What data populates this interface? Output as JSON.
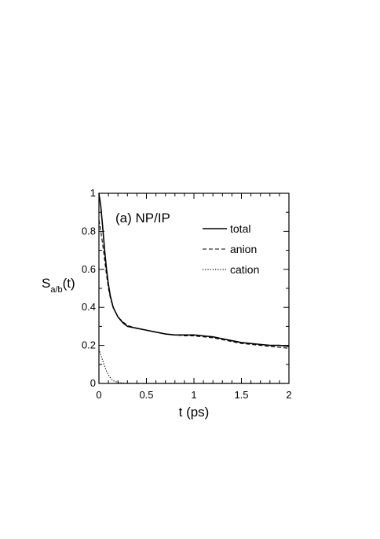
{
  "chart_data": {
    "type": "line",
    "panel_label": "(a) NP/IP",
    "xlabel": "t (ps)",
    "ylabel": {
      "main": "S",
      "sub": "a/b",
      "suffix": "(t)"
    },
    "xlim": [
      0,
      2
    ],
    "ylim": [
      0,
      1
    ],
    "x_ticks": [
      0,
      0.5,
      1,
      1.5,
      2
    ],
    "x_tick_labels": [
      "0",
      "0.5",
      "1",
      "1.5",
      "2"
    ],
    "y_ticks": [
      0,
      0.2,
      0.4,
      0.6,
      0.8,
      1
    ],
    "y_tick_labels": [
      "0",
      "0.2",
      "0.4",
      "0.6",
      "0.8",
      "1"
    ],
    "grid": false,
    "legend_position": "top-right",
    "series": [
      {
        "name": "total",
        "style": "solid",
        "x": [
          0,
          0.02,
          0.04,
          0.06,
          0.08,
          0.1,
          0.12,
          0.15,
          0.2,
          0.25,
          0.3,
          0.4,
          0.5,
          0.6,
          0.7,
          0.8,
          0.9,
          1.0,
          1.1,
          1.2,
          1.3,
          1.4,
          1.5,
          1.6,
          1.7,
          1.8,
          1.9,
          2.0
        ],
        "y": [
          1.0,
          0.93,
          0.82,
          0.7,
          0.6,
          0.52,
          0.46,
          0.4,
          0.35,
          0.32,
          0.3,
          0.29,
          0.28,
          0.27,
          0.26,
          0.255,
          0.255,
          0.255,
          0.25,
          0.245,
          0.235,
          0.225,
          0.215,
          0.21,
          0.205,
          0.2,
          0.2,
          0.195
        ]
      },
      {
        "name": "anion",
        "style": "dashed",
        "x": [
          0,
          0.02,
          0.04,
          0.06,
          0.08,
          0.1,
          0.12,
          0.15,
          0.2,
          0.25,
          0.3,
          0.4,
          0.5,
          0.6,
          0.7,
          0.8,
          0.9,
          1.0,
          1.1,
          1.2,
          1.3,
          1.4,
          1.5,
          1.6,
          1.7,
          1.8,
          1.9,
          2.0
        ],
        "y": [
          0.86,
          0.8,
          0.73,
          0.65,
          0.57,
          0.5,
          0.45,
          0.4,
          0.35,
          0.325,
          0.305,
          0.29,
          0.28,
          0.27,
          0.26,
          0.255,
          0.25,
          0.25,
          0.245,
          0.24,
          0.23,
          0.22,
          0.21,
          0.205,
          0.2,
          0.195,
          0.19,
          0.185
        ]
      },
      {
        "name": "cation",
        "style": "dotted",
        "x": [
          0,
          0.02,
          0.04,
          0.06,
          0.08,
          0.1,
          0.12,
          0.15,
          0.2,
          0.3,
          0.5,
          1.0,
          1.5,
          2.0
        ],
        "y": [
          0.18,
          0.15,
          0.12,
          0.09,
          0.065,
          0.045,
          0.03,
          0.015,
          0.005,
          0.0,
          0.0,
          0.0,
          0.0,
          0.0
        ]
      }
    ]
  }
}
